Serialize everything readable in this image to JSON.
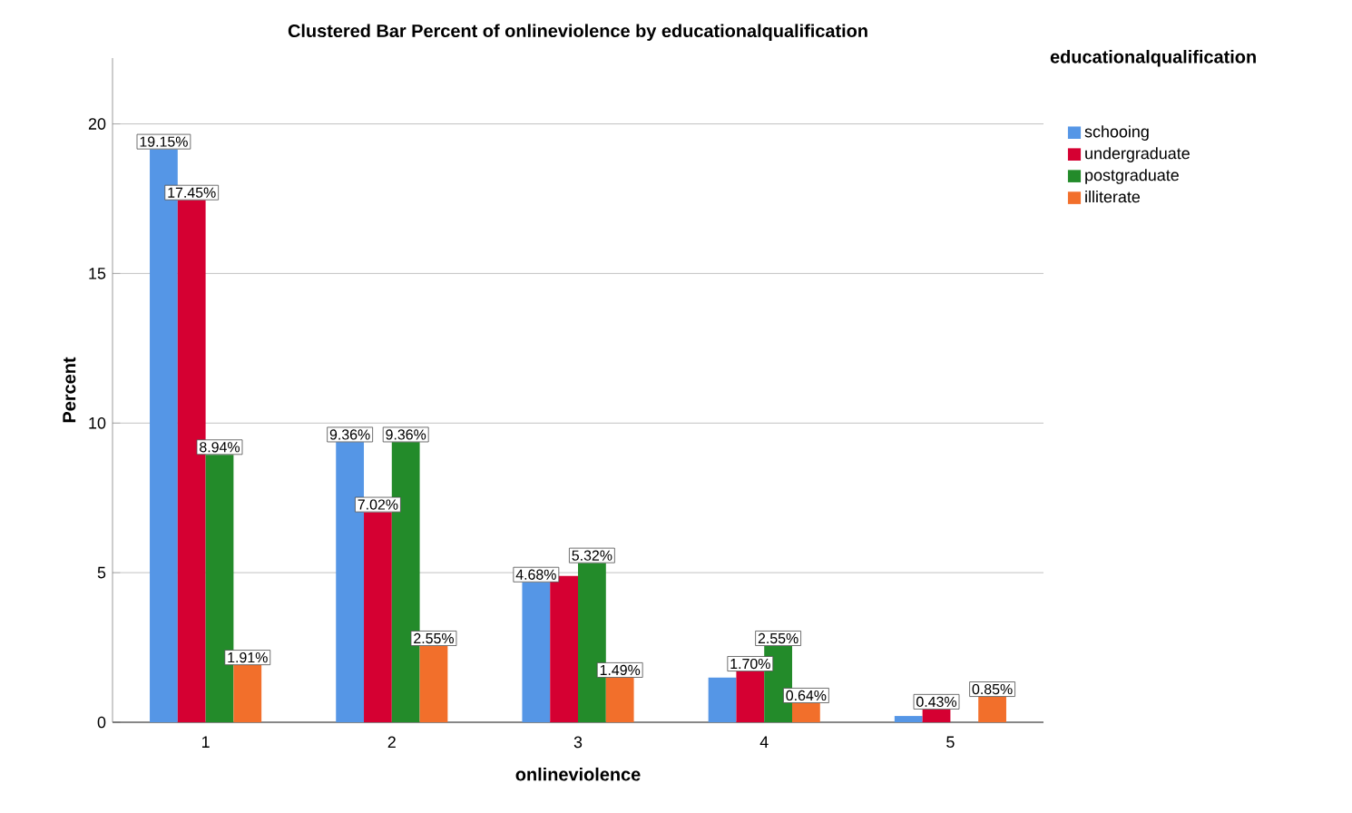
{
  "chart_data": {
    "type": "bar",
    "title": "Clustered Bar Percent of onlineviolence by educationalqualification",
    "xlabel": "onlineviolence",
    "ylabel": "Percent",
    "legend_title": "educationalqualification",
    "categories": [
      "1",
      "2",
      "3",
      "4",
      "5"
    ],
    "series": [
      {
        "name": "schooing",
        "color": "#5596e6",
        "values": [
          19.15,
          9.36,
          4.68,
          1.49,
          0.21
        ],
        "value_labels": [
          "19.15%",
          "9.36%",
          "4.68%",
          null,
          null
        ]
      },
      {
        "name": "undergraduate",
        "color": "#d50032",
        "values": [
          17.45,
          7.02,
          4.89,
          1.7,
          0.43
        ],
        "value_labels": [
          "17.45%",
          "7.02%",
          null,
          "1.70%",
          "0.43%"
        ]
      },
      {
        "name": "postgraduate",
        "color": "#238b2a",
        "values": [
          8.94,
          9.36,
          5.32,
          2.55,
          null
        ],
        "value_labels": [
          "8.94%",
          "9.36%",
          "5.32%",
          "2.55%",
          null
        ]
      },
      {
        "name": "illiterate",
        "color": "#f26f2b",
        "values": [
          1.91,
          2.55,
          1.49,
          0.64,
          0.85
        ],
        "value_labels": [
          "1.91%",
          "2.55%",
          "1.49%",
          "0.64%",
          "0.85%"
        ]
      }
    ],
    "ylim": [
      0,
      22.2
    ],
    "yticks": [
      0,
      5,
      10,
      15,
      20
    ],
    "grid": "y",
    "legend": "top right"
  }
}
